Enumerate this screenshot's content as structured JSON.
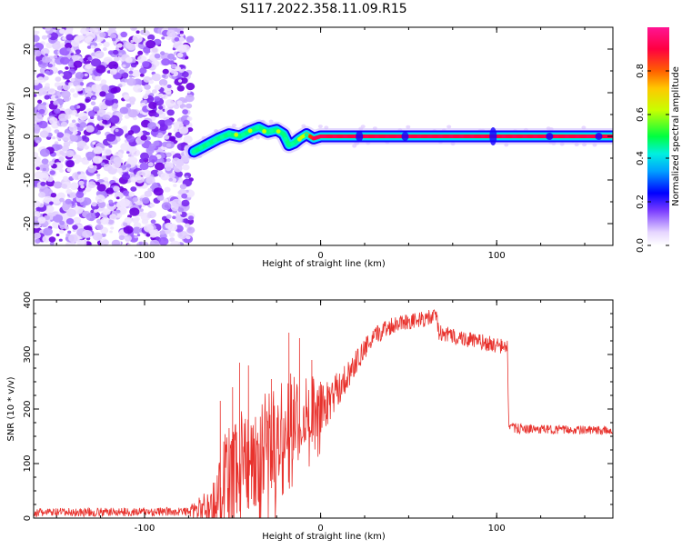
{
  "title": "S117.2022.358.11.09.R15",
  "chart_data": [
    {
      "type": "heatmap",
      "xlabel": "Height of straight line (km)",
      "ylabel": "Frequency (Hz)",
      "xlim": [
        -163,
        166
      ],
      "ylim": [
        -25,
        25
      ],
      "x_ticks": [
        -100,
        0,
        100
      ],
      "y_ticks": [
        -20,
        -10,
        0,
        10,
        20
      ],
      "colorbar": {
        "label": "Normalized spectral amplitude",
        "range": [
          0.0,
          1.0
        ],
        "ticks": [
          0.0,
          0.2,
          0.4,
          0.6,
          0.8
        ],
        "colors": [
          "#f5ecff",
          "#b48cff",
          "#6a00e0",
          "#0000ff",
          "#00c8ff",
          "#00ff80",
          "#c8ff00",
          "#ff8000",
          "#ff0050",
          "#ff1493"
        ]
      },
      "noise_region_x": [
        -163,
        -72
      ],
      "ridge": {
        "x": [
          -72,
          -65,
          -58,
          -52,
          -46,
          -40,
          -35,
          -30,
          -25,
          -21,
          -18,
          -15,
          -12,
          -8,
          -4,
          0,
          3,
          5,
          10,
          20,
          40,
          60,
          80,
          100,
          120,
          140,
          166
        ],
        "freq_hz": [
          -3.5,
          -2.0,
          -0.5,
          0.5,
          0.0,
          1.2,
          2.0,
          1.0,
          1.5,
          0.5,
          -2.0,
          -1.5,
          -0.5,
          0.5,
          -0.5,
          0.0,
          0.0,
          0.0,
          0.0,
          0.0,
          0.0,
          0.0,
          0.0,
          0.0,
          0.0,
          0.0,
          0.0
        ],
        "peak_amplitude": [
          0.45,
          0.45,
          0.45,
          0.45,
          0.45,
          0.45,
          0.45,
          0.45,
          0.4,
          0.35,
          0.3,
          0.4,
          0.5,
          0.6,
          0.85,
          0.95,
          0.95,
          0.95,
          0.95,
          0.95,
          0.95,
          0.95,
          0.95,
          0.95,
          0.95,
          0.95,
          0.9
        ]
      }
    },
    {
      "type": "line",
      "xlabel": "Height of straight line (km)",
      "ylabel": "SNR (10 * v/v)",
      "xlim": [
        -163,
        166
      ],
      "ylim": [
        0,
        400
      ],
      "x_ticks": [
        -100,
        0,
        100
      ],
      "y_ticks": [
        0,
        100,
        200,
        300,
        400
      ],
      "color": "#e8322d",
      "envelope": {
        "x": [
          -163,
          -75,
          -62,
          -55,
          -45,
          -35,
          -25,
          -15,
          -5,
          5,
          15,
          25,
          35,
          45,
          55,
          66,
          67,
          80,
          95,
          106,
          107,
          120,
          140,
          166
        ],
        "base": [
          10,
          12,
          20,
          70,
          110,
          120,
          160,
          190,
          200,
          215,
          260,
          310,
          345,
          360,
          362,
          370,
          340,
          330,
          320,
          312,
          165,
          163,
          162,
          160
        ],
        "spread": [
          8,
          8,
          40,
          80,
          95,
          100,
          90,
          80,
          60,
          40,
          25,
          20,
          18,
          15,
          15,
          15,
          15,
          15,
          15,
          15,
          10,
          8,
          8,
          8
        ]
      },
      "peaks": [
        [
          -57,
          215
        ],
        [
          -50,
          240
        ],
        [
          -46,
          285
        ],
        [
          -41,
          280
        ],
        [
          -28,
          255
        ],
        [
          -18,
          340
        ],
        [
          -12,
          330
        ],
        [
          -5,
          290
        ],
        [
          0,
          250
        ]
      ]
    }
  ]
}
